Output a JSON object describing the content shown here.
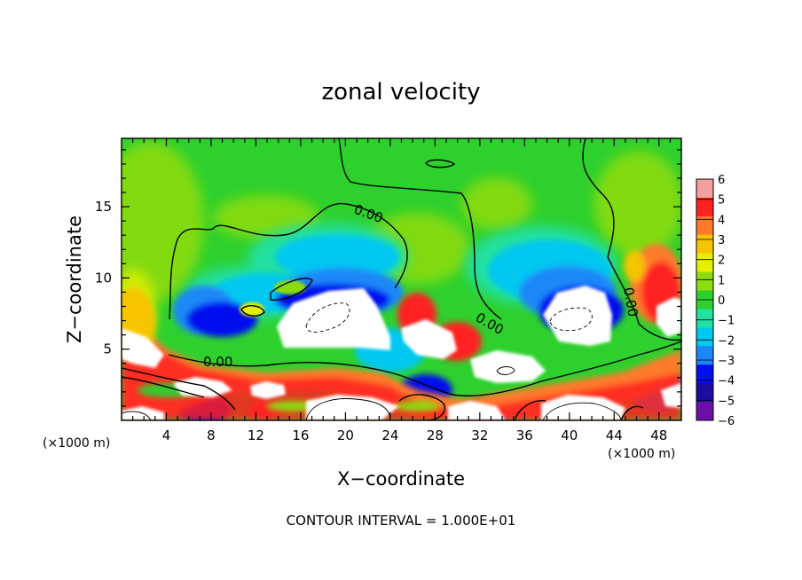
{
  "chart_data": {
    "type": "heatmap",
    "title": "zonal velocity",
    "xlabel": "X−coordinate",
    "ylabel": "Z−coordinate",
    "x_unit_left": "(×1000 m)",
    "x_unit_right": "(×1000 m)",
    "footer": "CONTOUR INTERVAL = 1.000E+01",
    "xlim": [
      0,
      50
    ],
    "ylim": [
      0,
      19.8
    ],
    "x_ticks": [
      4,
      8,
      12,
      16,
      20,
      24,
      28,
      32,
      36,
      40,
      44,
      48
    ],
    "y_ticks": [
      5,
      10,
      15
    ],
    "colorbar": {
      "range": [
        -6,
        6
      ],
      "labels": [
        "6",
        "5",
        "4",
        "3",
        "2",
        "1",
        "0",
        "−1",
        "−2",
        "−3",
        "−4",
        "−5",
        "−6"
      ],
      "colors": [
        "#f4a0a0",
        "#ff2020",
        "#ff7a2a",
        "#f7c400",
        "#e4f000",
        "#8cdc10",
        "#2ed02e",
        "#22e0a0",
        "#00c8f0",
        "#1a88f8",
        "#0010ee",
        "#1e0ca0",
        "#6a10a8"
      ]
    },
    "contour_labels": [
      {
        "text": "0.00",
        "x": 18.5,
        "y": 15.3
      },
      {
        "text": "0.00",
        "x": 6.9,
        "y": 4.1
      },
      {
        "text": "0.00",
        "x": 33.4,
        "y": 6.4
      },
      {
        "text": "0.00",
        "x": 45.8,
        "y": 8.6
      }
    ],
    "colors": {
      "background": "#ffffff",
      "field_base": "#2ed02e",
      "saturated_high": "#ffffff"
    }
  }
}
